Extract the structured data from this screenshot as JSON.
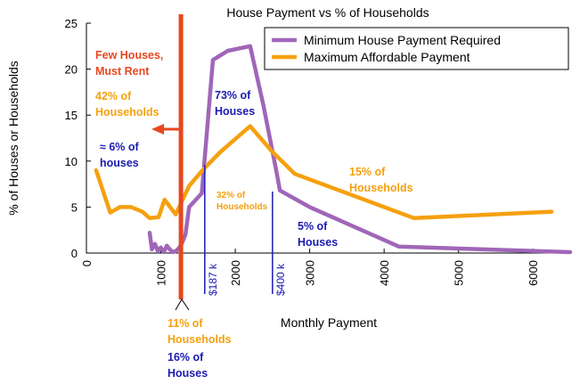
{
  "chart_data": {
    "type": "line",
    "title": "House Payment vs % of Households",
    "xlabel": "Monthly Payment",
    "ylabel": "% of Houses or Households",
    "xlim": [
      0,
      6500
    ],
    "ylim": [
      0,
      25
    ],
    "x_ticks": [
      "0",
      "1000",
      "2000",
      "3000",
      "4000",
      "5000",
      "6000"
    ],
    "y_ticks": [
      "0",
      "5",
      "10",
      "15",
      "20",
      "25"
    ],
    "legend_position": "top-right",
    "series": [
      {
        "name": "Minimum House Payment Required",
        "color": "#a066b8",
        "points": [
          [
            850,
            2.2
          ],
          [
            880,
            0.4
          ],
          [
            920,
            1.0
          ],
          [
            960,
            0.2
          ],
          [
            1000,
            0.6
          ],
          [
            1040,
            0.1
          ],
          [
            1080,
            0.8
          ],
          [
            1120,
            0.4
          ],
          [
            1160,
            0.1
          ],
          [
            1200,
            0.2
          ],
          [
            1240,
            0.5
          ],
          [
            1280,
            1.0
          ],
          [
            1330,
            2.0
          ],
          [
            1380,
            5.0
          ],
          [
            1550,
            6.5
          ],
          [
            1700,
            21.0
          ],
          [
            1900,
            22.0
          ],
          [
            2200,
            22.5
          ],
          [
            2380,
            16.0
          ],
          [
            2550,
            9.0
          ],
          [
            2600,
            6.8
          ],
          [
            3000,
            5.0
          ],
          [
            4200,
            0.7
          ],
          [
            6500,
            0.1
          ]
        ]
      },
      {
        "name": "Maximum Affordable Payment",
        "color": "#f5a00f",
        "points": [
          [
            130,
            9.0
          ],
          [
            320,
            4.4
          ],
          [
            450,
            5.0
          ],
          [
            600,
            5.0
          ],
          [
            750,
            4.5
          ],
          [
            850,
            3.8
          ],
          [
            970,
            3.9
          ],
          [
            1050,
            5.8
          ],
          [
            1200,
            4.2
          ],
          [
            1380,
            7.3
          ],
          [
            1560,
            9.0
          ],
          [
            1800,
            11.0
          ],
          [
            2200,
            13.8
          ],
          [
            2500,
            11.0
          ],
          [
            2800,
            8.6
          ],
          [
            4400,
            3.8
          ],
          [
            6250,
            4.5
          ]
        ]
      }
    ],
    "vertical_lines": [
      {
        "x": 1270,
        "color": "#e8471f"
      },
      {
        "x": 1590,
        "label": "$187 k",
        "color": "#1a1ab0"
      },
      {
        "x": 2500,
        "label": "$400 k",
        "color": "#1a1ab0"
      }
    ],
    "annotations": [
      {
        "lines": [
          "Few Houses,",
          "Must Rent"
        ],
        "color": "#e8471f"
      },
      {
        "lines": [
          "42% of",
          "Households"
        ],
        "color": "#f5a00f"
      },
      {
        "lines": [
          "≈ 6% of",
          "houses"
        ],
        "color": "#1a1ab0"
      },
      {
        "lines": [
          "73% of",
          "Houses"
        ],
        "color": "#1a1ab0"
      },
      {
        "lines": [
          "32% of",
          "Households"
        ],
        "color": "#f5a00f"
      },
      {
        "lines": [
          "15% of",
          "Households"
        ],
        "color": "#f5a00f"
      },
      {
        "lines": [
          "5% of",
          "Houses"
        ],
        "color": "#1a1ab0"
      },
      {
        "lines": [
          "11% of",
          "Households"
        ],
        "color": "#f5a00f"
      },
      {
        "lines": [
          "16% of",
          "Houses"
        ],
        "color": "#1a1ab0"
      }
    ]
  }
}
